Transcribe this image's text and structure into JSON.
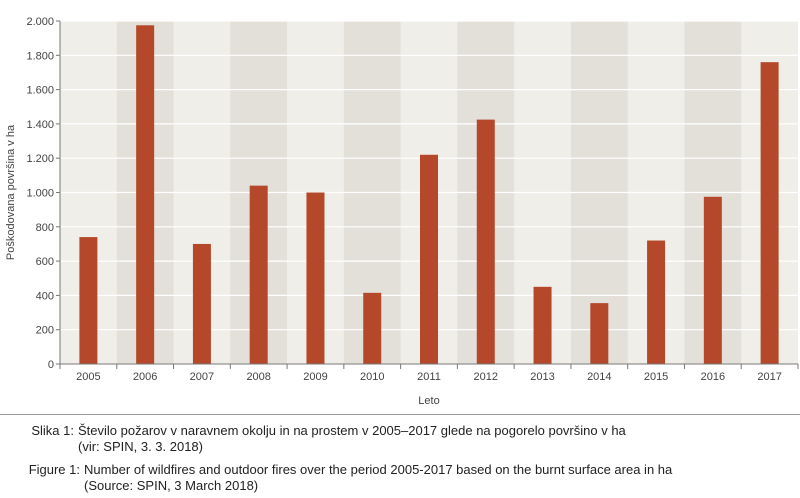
{
  "chart_data": {
    "type": "bar",
    "categories": [
      "2005",
      "2006",
      "2007",
      "2008",
      "2009",
      "2010",
      "2011",
      "2012",
      "2013",
      "2014",
      "2015",
      "2016",
      "2017"
    ],
    "values": [
      740,
      1975,
      700,
      1040,
      1000,
      415,
      1220,
      1425,
      450,
      355,
      720,
      975,
      1760
    ],
    "yticks": [
      0,
      200,
      400,
      600,
      800,
      1000,
      1200,
      1400,
      1600,
      1800,
      2000
    ],
    "ytick_labels": [
      "0",
      "200",
      "400",
      "600",
      "800",
      "1.000",
      "1.200",
      "1.400",
      "1.600",
      "1.800",
      "2.000"
    ],
    "ylim": [
      0,
      2000
    ],
    "xlabel": "Leto",
    "ylabel": "Poškodovana površina v ha",
    "grid": true,
    "colors": {
      "bar": "#b5482a",
      "plot_bg": "#efeee8",
      "grid": "#ffffff",
      "band": "#e2e0d8"
    }
  },
  "captions": {
    "si": {
      "label": "Slika 1:",
      "line1": "Število požarov v naravnem okolju in na prostem v 2005–2017 glede na pogorelo površino v ha",
      "line2": "(vir: SPIN, 3. 3. 2018)"
    },
    "en": {
      "label": "Figure 1:",
      "line1": "Number of wildfires and outdoor fires over the period 2005-2017 based on the burnt surface area in ha",
      "line2": "(Source: SPIN, 3 March 2018)"
    }
  }
}
